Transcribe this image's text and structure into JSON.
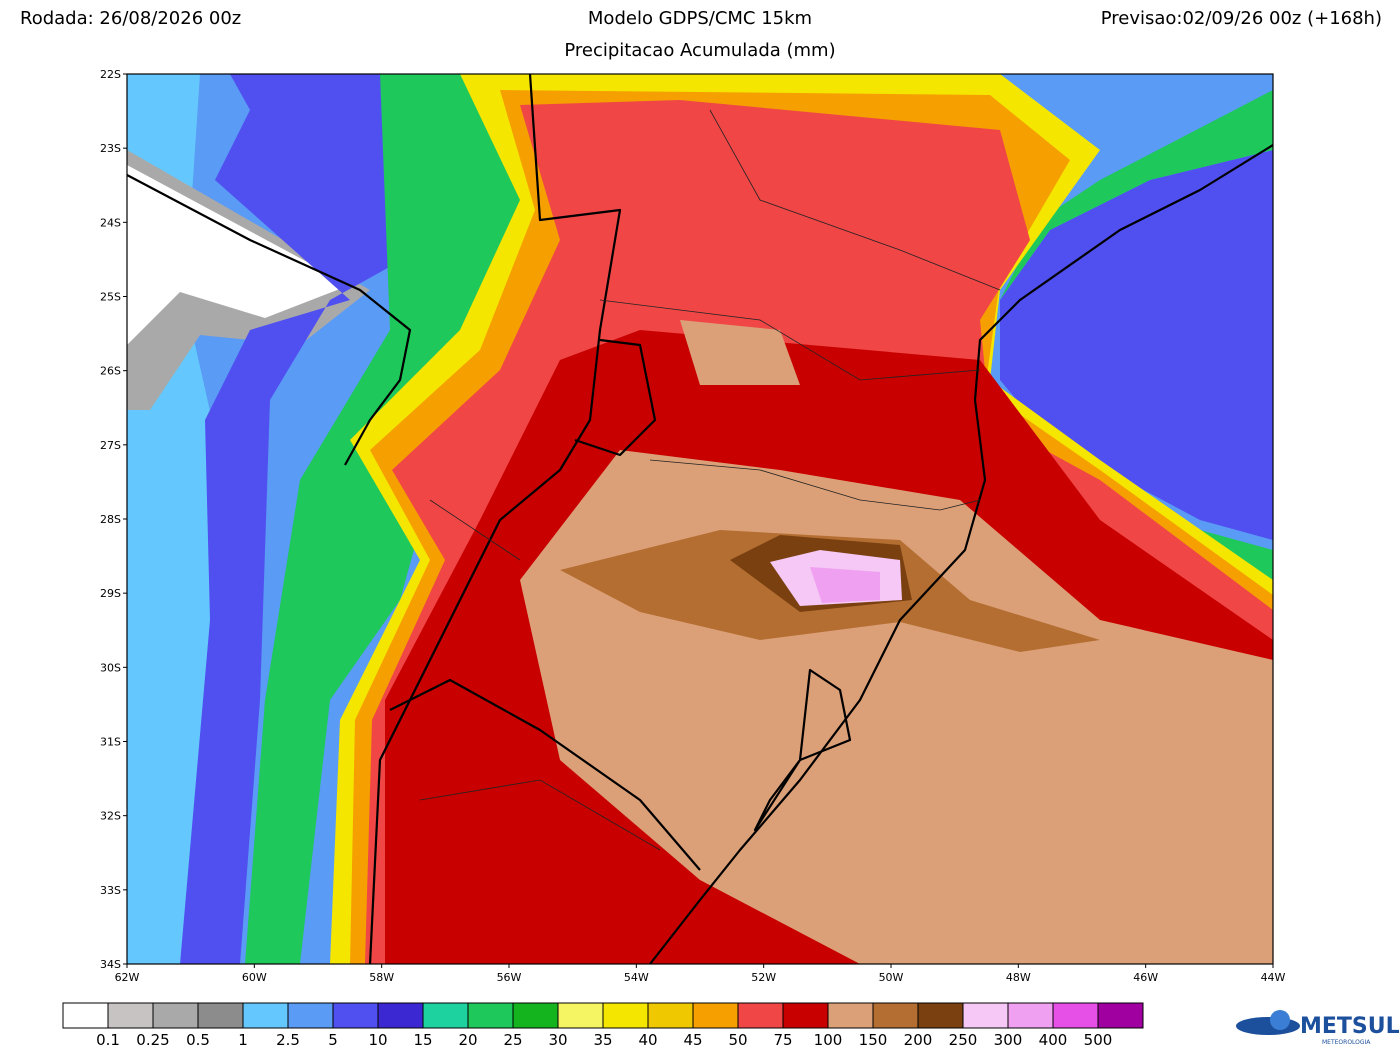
{
  "header": {
    "run": "Rodada: 26/08/2026 00z",
    "model": "Modelo GDPS/CMC 15km",
    "subtitle": "Precipitacao Acumulada (mm)",
    "forecast": "Previsao:02/09/26 00z (+168h)"
  },
  "map": {
    "lat_labels": [
      "22S",
      "23S",
      "24S",
      "25S",
      "26S",
      "27S",
      "28S",
      "29S",
      "30S",
      "31S",
      "32S",
      "33S",
      "34S"
    ],
    "lon_labels": [
      "62W",
      "60W",
      "58W",
      "56W",
      "54W",
      "52W",
      "50W",
      "48W",
      "46W",
      "44W"
    ]
  },
  "colorbar": {
    "colors": [
      "#ffffff",
      "#c8c3c3",
      "#a9a9a9",
      "#8c8c8c",
      "#64c8ff",
      "#5a9bf5",
      "#5050f0",
      "#3c28d2",
      "#1ed2a0",
      "#1ec85a",
      "#14b41e",
      "#f5f564",
      "#f5e600",
      "#f0c800",
      "#f5a000",
      "#f04646",
      "#c80000",
      "#dca078",
      "#b46e32",
      "#7a4010",
      "#f5c8f5",
      "#f0a0f0",
      "#e650e6",
      "#a000a0"
    ],
    "labels": [
      "0.1",
      "0.25",
      "0.5",
      "1",
      "2.5",
      "5",
      "10",
      "15",
      "20",
      "25",
      "30",
      "35",
      "40",
      "45",
      "50",
      "75",
      "100",
      "150",
      "200",
      "250",
      "300",
      "400",
      "500"
    ]
  },
  "logo": {
    "name": "METSUL",
    "tagline": "METEOROLOGIA"
  }
}
